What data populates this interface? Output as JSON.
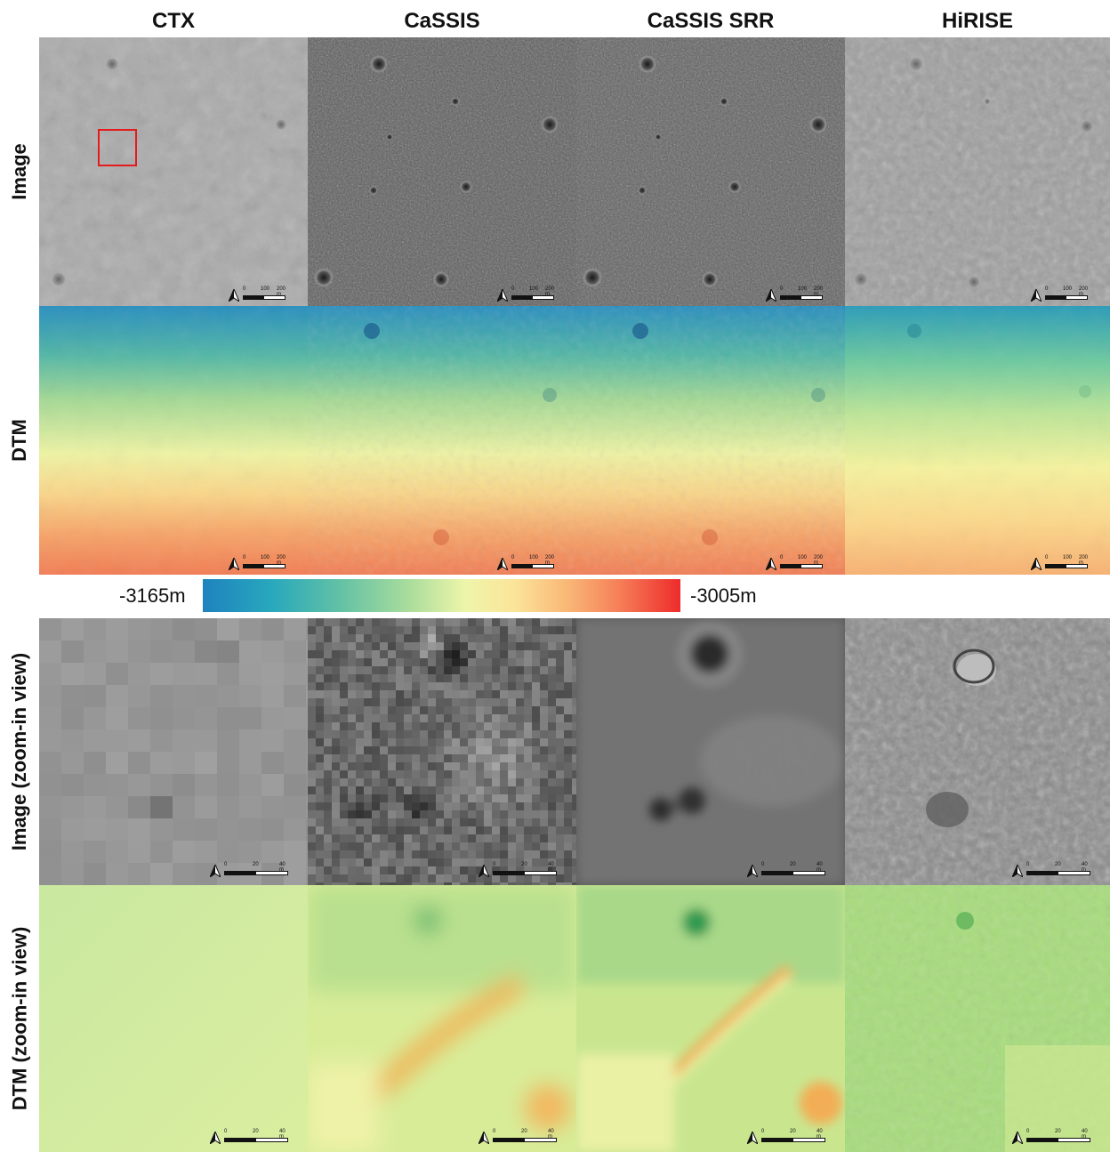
{
  "columns": [
    "CTX",
    "CaSSIS",
    "CaSSIS SRR",
    "HiRISE"
  ],
  "rows": [
    "Image",
    "DTM",
    "Image (zoom-in view)",
    "DTM (zoom-in view)"
  ],
  "colorbar": {
    "min_label": "-3165m",
    "max_label": "-3005m",
    "colors": [
      "#1f82be",
      "#27a7bd",
      "#5fc0a6",
      "#a9dc9c",
      "#eef5aa",
      "#fbe59a",
      "#f9b977",
      "#f68059",
      "#ee2b2b"
    ]
  },
  "scalebars": {
    "full": {
      "t0": "0",
      "t1": "100",
      "t2": "200 m"
    },
    "zoom": {
      "t0": "0",
      "t1": "20",
      "t2": "40 m"
    }
  },
  "north_arrow_icon": "north-arrow-icon",
  "highlight_box_color": "#e41a1c"
}
